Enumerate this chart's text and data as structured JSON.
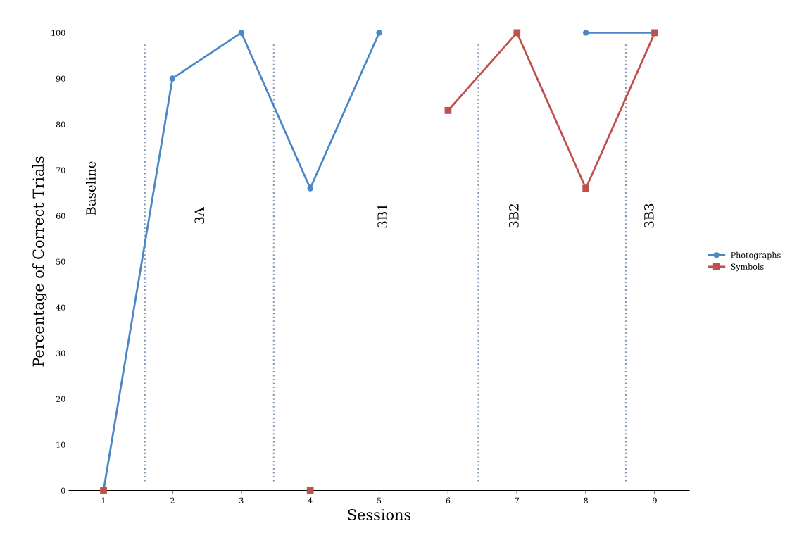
{
  "chart_data": {
    "type": "line",
    "xlabel": "Sessions",
    "ylabel": "Percentage of Correct Trials",
    "x": [
      1,
      2,
      3,
      4,
      5,
      6,
      7,
      8,
      9
    ],
    "xlim": [
      0.5,
      9.5
    ],
    "xticks": [
      1,
      2,
      3,
      4,
      5,
      6,
      7,
      8,
      9
    ],
    "ylim": [
      0,
      100
    ],
    "yticks": [
      0,
      10,
      20,
      30,
      40,
      50,
      60,
      70,
      80,
      90,
      100
    ],
    "series": [
      {
        "name": "Photographs",
        "color": "#4a86c8",
        "marker": "circle",
        "values": [
          0,
          90,
          100,
          66,
          100,
          null,
          null,
          100,
          100
        ]
      },
      {
        "name": "Symbols",
        "color": "#c0504d",
        "marker": "square",
        "values": [
          0,
          null,
          null,
          0,
          null,
          83,
          100,
          66,
          100
        ]
      }
    ],
    "ref_lines": [
      {
        "axis": "x",
        "value": 1.6,
        "color": "#8096b0",
        "line_style": "dotted"
      },
      {
        "axis": "x",
        "value": 3.47,
        "color": "#8096b0",
        "line_style": "dotted"
      },
      {
        "axis": "x",
        "value": 6.44,
        "color": "#8096b0",
        "line_style": "dotted"
      },
      {
        "axis": "x",
        "value": 8.58,
        "color": "#8096b0",
        "line_style": "dotted"
      }
    ],
    "annotations": [
      "Baseline",
      "3A",
      "3B1",
      "3B2",
      "3B3"
    ],
    "legend": "right",
    "grid": false
  }
}
